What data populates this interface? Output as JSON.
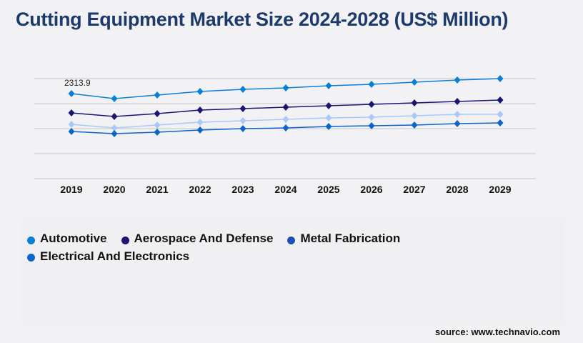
{
  "title": "Cutting Equipment Market Size 2024-2028 (US$ Million)",
  "source": "source: www.technavio.com",
  "chart_data": {
    "type": "line",
    "title": "Cutting Equipment Market Size 2024-2028 (US$ Million)",
    "categories": [
      "2019",
      "2020",
      "2021",
      "2022",
      "2023",
      "2024",
      "2025",
      "2026",
      "2027",
      "2028",
      "2029"
    ],
    "ylim": [
      0,
      2722
    ],
    "grid": true,
    "legend_position": "bottom",
    "annotation": "2313.9",
    "series": [
      {
        "name": "Automotive",
        "color": "#0a7fd6",
        "values": [
          2313.9,
          2177,
          2275,
          2372,
          2430,
          2469,
          2527,
          2566,
          2625,
          2683,
          2722
        ]
      },
      {
        "name": "Aerospace And Defense",
        "color": "#1a1573",
        "values": [
          1789,
          1691,
          1769,
          1866,
          1905,
          1944,
          1983,
          2022,
          2061,
          2100,
          2138
        ]
      },
      {
        "name": "Metal Fabrication",
        "color": "#a9c8f7",
        "legend_color": "#1e4fb0",
        "values": [
          1478,
          1380,
          1458,
          1536,
          1575,
          1614,
          1652,
          1672,
          1711,
          1750,
          1750
        ]
      },
      {
        "name": "Electrical And Electronics",
        "color": "#0b66c9",
        "values": [
          1283,
          1225,
          1264,
          1322,
          1361,
          1380,
          1419,
          1439,
          1458,
          1497,
          1516
        ]
      }
    ]
  }
}
